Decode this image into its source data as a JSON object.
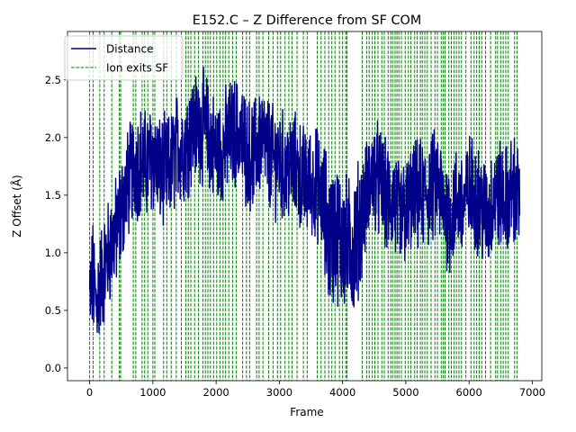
{
  "chart_data": {
    "type": "line",
    "title": "E152.C – Z Difference from SF COM",
    "xlabel": "Frame",
    "ylabel": "Z Offset (Å)",
    "xlim": [
      -350,
      7150
    ],
    "ylim": [
      -0.11,
      2.92
    ],
    "x_ticks": [
      0,
      1000,
      2000,
      3000,
      4000,
      5000,
      6000,
      7000
    ],
    "y_ticks": [
      0.0,
      0.5,
      1.0,
      1.5,
      2.0,
      2.5
    ],
    "x_tick_labels": [
      "0",
      "1000",
      "2000",
      "3000",
      "4000",
      "5000",
      "6000",
      "7000"
    ],
    "y_tick_labels": [
      "0.0",
      "0.5",
      "1.0",
      "1.5",
      "2.0",
      "2.5"
    ],
    "grid": false,
    "legend_position": "top-left",
    "series": [
      {
        "name": "Distance",
        "color": "#00008b",
        "style": "solid",
        "frames": [
          0,
          50,
          100,
          150,
          200,
          300,
          400,
          500,
          600,
          700,
          800,
          900,
          1000,
          1100,
          1200,
          1300,
          1400,
          1500,
          1600,
          1700,
          1800,
          1900,
          2000,
          2100,
          2200,
          2300,
          2400,
          2500,
          2600,
          2700,
          2800,
          2900,
          3000,
          3100,
          3200,
          3300,
          3400,
          3500,
          3600,
          3700,
          3800,
          3900,
          4000,
          4100,
          4200,
          4300,
          4400,
          4500,
          4600,
          4700,
          4800,
          4900,
          5000,
          5100,
          5200,
          5300,
          5400,
          5500,
          5600,
          5700,
          5800,
          5900,
          6000,
          6100,
          6200,
          6300,
          6400,
          6500,
          6600,
          6700,
          6800
        ],
        "values": [
          0.6,
          0.8,
          0.55,
          0.7,
          0.8,
          1.0,
          1.15,
          1.35,
          1.6,
          1.75,
          1.8,
          1.75,
          1.85,
          1.7,
          1.7,
          1.75,
          1.95,
          1.9,
          2.05,
          2.1,
          2.1,
          2.0,
          1.85,
          1.9,
          2.0,
          2.05,
          2.0,
          1.85,
          1.85,
          2.0,
          1.9,
          1.8,
          1.8,
          1.7,
          1.75,
          1.7,
          1.6,
          1.6,
          1.6,
          1.4,
          1.1,
          1.2,
          1.1,
          1.05,
          1.1,
          1.3,
          1.55,
          1.7,
          1.6,
          1.45,
          1.45,
          1.3,
          1.35,
          1.45,
          1.5,
          1.5,
          1.55,
          1.6,
          1.4,
          1.3,
          1.45,
          1.4,
          1.55,
          1.5,
          1.4,
          1.3,
          1.5,
          1.5,
          1.45,
          1.55,
          1.45
        ],
        "min_value": 0.03,
        "max_value": 2.75
      }
    ],
    "ion_exit_frames": [
      0,
      55,
      160,
      230,
      350,
      470,
      490,
      690,
      730,
      830,
      870,
      920,
      1000,
      1030,
      1170,
      1220,
      1290,
      1370,
      1450,
      1520,
      1560,
      1600,
      1660,
      1720,
      1790,
      1830,
      1870,
      1910,
      1960,
      2010,
      2060,
      2110,
      2150,
      2200,
      2260,
      2320,
      2420,
      2480,
      2530,
      2640,
      2680,
      2740,
      2830,
      2900,
      2970,
      3020,
      3090,
      3150,
      3200,
      3280,
      3380,
      3440,
      3600,
      3660,
      3720,
      3780,
      3830,
      3880,
      3950,
      4000,
      4050,
      4070,
      4310,
      4380,
      4420,
      4470,
      4510,
      4560,
      4620,
      4660,
      4720,
      4760,
      4790,
      4830,
      4860,
      4890,
      4930,
      4990,
      5040,
      5080,
      5140,
      5180,
      5230,
      5260,
      5300,
      5340,
      5400,
      5460,
      5500,
      5560,
      5590,
      5620,
      5680,
      5720,
      5760,
      5800,
      5840,
      5880,
      5950,
      6030,
      6080,
      6120,
      6160,
      6200,
      6260,
      6340,
      6420,
      6450,
      6500,
      6540,
      6580,
      6620,
      6720,
      6760
    ],
    "legend": [
      {
        "label": "Distance",
        "color": "#00008b",
        "style": "solid"
      },
      {
        "label": "Ion exits SF",
        "color": "#008000",
        "style": "dashed"
      }
    ]
  }
}
